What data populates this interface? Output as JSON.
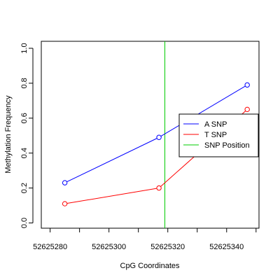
{
  "chart_data": {
    "type": "line",
    "xlabel": "CpG Coordinates",
    "ylabel": "Methylation Frequency",
    "xlim": [
      52625277,
      52625351
    ],
    "ylim": [
      -0.03,
      1.04
    ],
    "xticks": [
      52625280,
      52625300,
      52625320,
      52625340
    ],
    "xtick_labels": [
      "52625280",
      "52625300",
      "52625320",
      "52625340"
    ],
    "yticks": [
      0.0,
      0.2,
      0.4,
      0.6,
      0.8,
      1.0
    ],
    "ytick_labels": [
      "0.0",
      "0.2",
      "0.4",
      "0.6",
      "0.8",
      "1.0"
    ],
    "grid": false,
    "legend_position": "right",
    "series": [
      {
        "name": "A SNP",
        "color": "#0000ff",
        "x": [
          52625285,
          52625317,
          52625347
        ],
        "y": [
          0.23,
          0.49,
          0.79
        ]
      },
      {
        "name": "T SNP",
        "color": "#ff0000",
        "x": [
          52625285,
          52625317,
          52625347
        ],
        "y": [
          0.11,
          0.2,
          0.65
        ]
      }
    ],
    "vline": {
      "name": "SNP Position",
      "color": "#00cc00",
      "x": 52625319
    }
  }
}
